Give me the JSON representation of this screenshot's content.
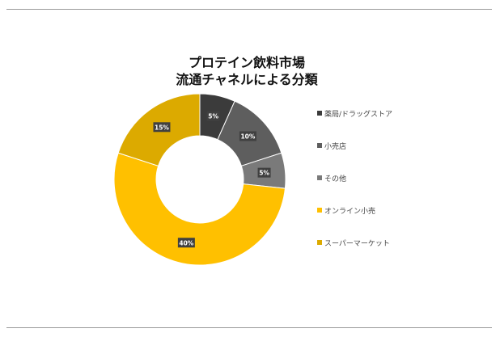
{
  "chart_data": {
    "type": "pie",
    "donut": true,
    "title_lines": [
      "プロテイン飲料市場",
      "流通チャネルによる分類"
    ],
    "categories": [
      "薬局/ドラッグストア",
      "小売店",
      "その他",
      "オンライン小売",
      "スーパーマーケット"
    ],
    "values": [
      5,
      10,
      5,
      40,
      15
    ],
    "labels": [
      "5%",
      "10%",
      "5%",
      "40%",
      "15%"
    ],
    "colors": [
      "#3b3b3b",
      "#5e5e5e",
      "#7a7a7a",
      "#ffc000",
      "#dcaa00"
    ],
    "legend_position": "right"
  }
}
